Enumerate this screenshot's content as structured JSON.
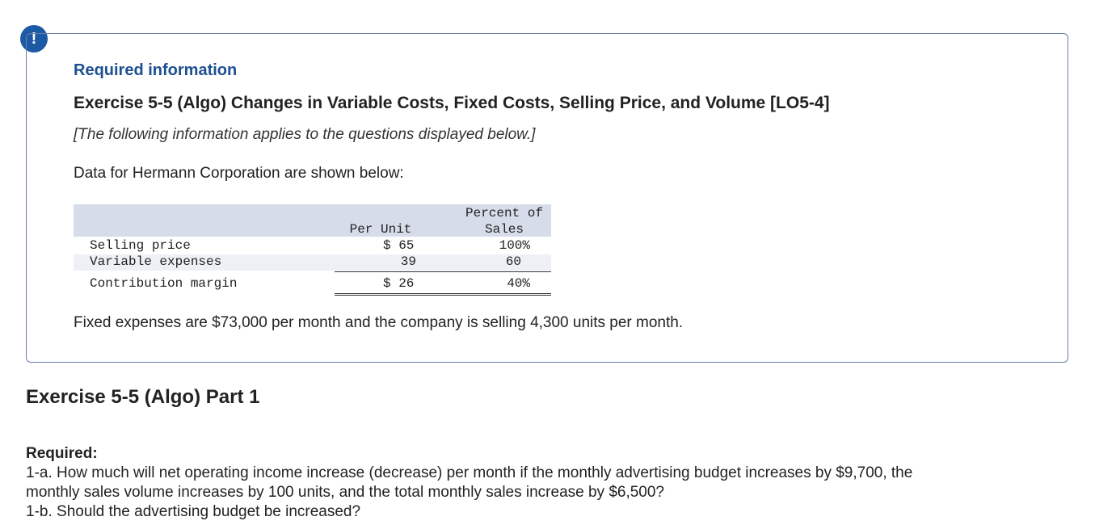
{
  "alert": {
    "icon": "exclamation-icon",
    "symbol": "!",
    "color": "#1d5aa6"
  },
  "info": {
    "heading": "Required information",
    "exercise_title": "Exercise 5-5 (Algo) Changes in Variable Costs, Fixed Costs, Selling Price, and Volume [LO5-4]",
    "applies_note": "[The following information applies to the questions displayed below.]",
    "data_intro": "Data for Hermann Corporation are shown below:",
    "fixed_expenses_text": "Fixed expenses are $73,000 per month and the company is selling 4,300 units per month."
  },
  "table": {
    "col_per_unit": "Per Unit",
    "col_percent_line1": "Percent of",
    "col_percent_line2": "Sales",
    "rows": [
      {
        "label": "Selling price",
        "per_unit": "$ 65",
        "percent": "100%"
      },
      {
        "label": "Variable expenses",
        "per_unit": "39",
        "percent": "60"
      },
      {
        "label": "Contribution margin",
        "per_unit": "$ 26",
        "percent": "40%"
      }
    ]
  },
  "part": {
    "title": "Exercise 5-5 (Algo) Part 1",
    "required_label": "Required:",
    "q1a_line1": "1-a. How much will net operating income increase (decrease) per month if the monthly advertising budget increases by $9,700, the",
    "q1a_line2": "monthly sales volume increases by 100 units, and the total monthly sales increase by $6,500?",
    "q1b": "1-b. Should the advertising budget be increased?"
  }
}
